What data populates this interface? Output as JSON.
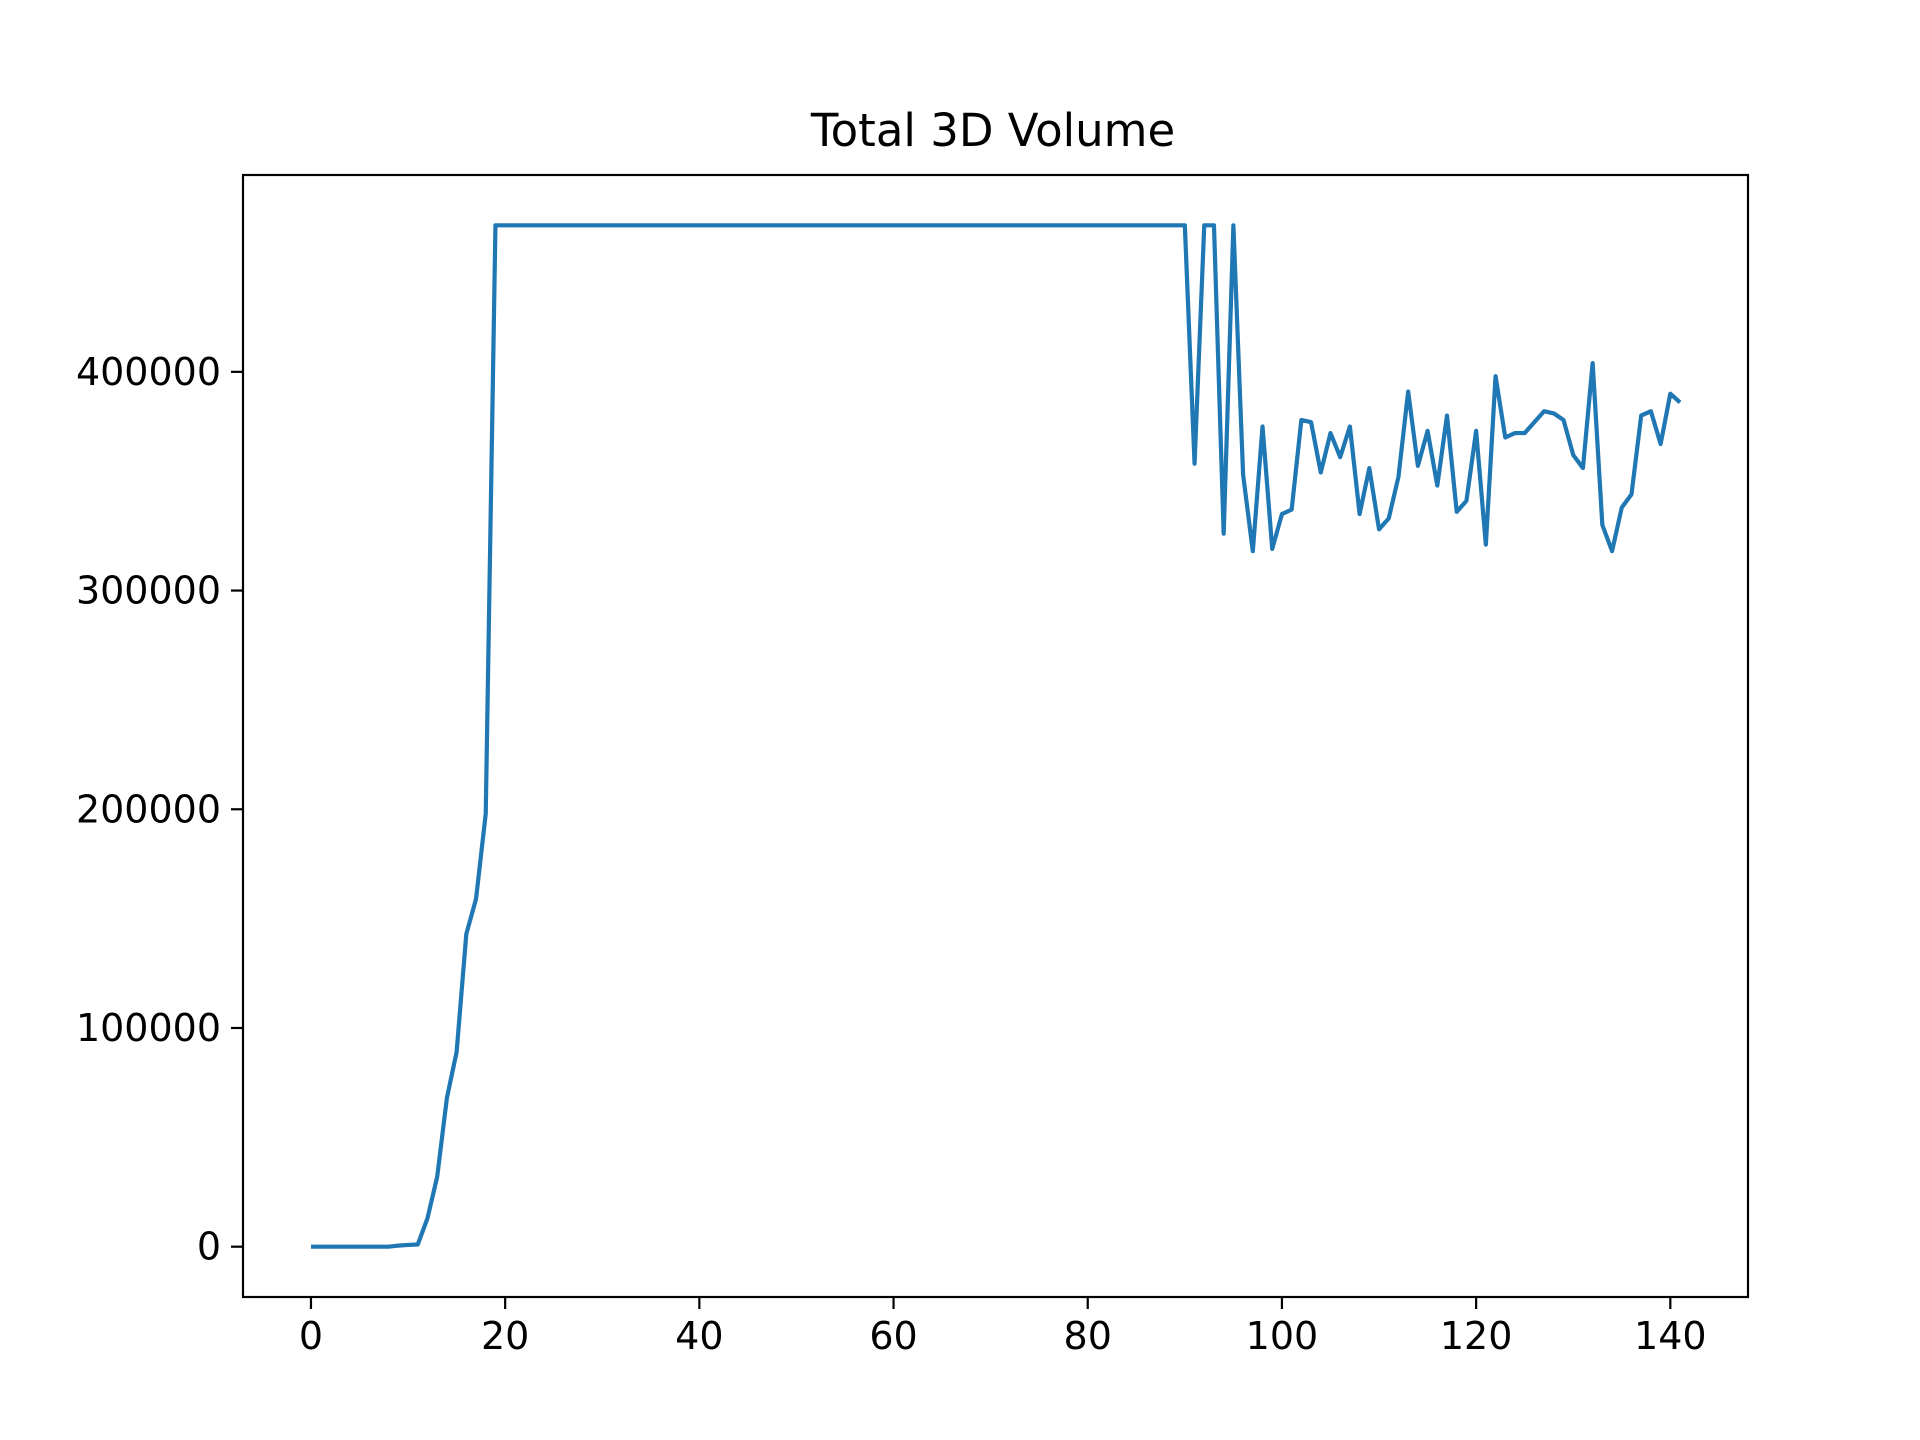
{
  "chart_data": {
    "type": "line",
    "title": "Total 3D Volume",
    "xlabel": "",
    "ylabel": "",
    "xlim": [
      -7,
      148
    ],
    "ylim": [
      -23000,
      490000
    ],
    "x_ticks": [
      0,
      20,
      40,
      60,
      80,
      100,
      120,
      140
    ],
    "y_ticks": [
      0,
      100000,
      200000,
      300000,
      400000
    ],
    "grid": false,
    "legend": "none",
    "series": [
      {
        "color": "#1f77b4",
        "x": [
          0,
          1,
          2,
          3,
          4,
          5,
          6,
          7,
          8,
          9,
          10,
          11,
          12,
          13,
          14,
          15,
          16,
          17,
          18,
          19,
          20,
          21,
          22,
          23,
          24,
          25,
          26,
          27,
          28,
          29,
          30,
          31,
          32,
          33,
          34,
          35,
          36,
          37,
          38,
          39,
          40,
          41,
          42,
          43,
          44,
          45,
          46,
          47,
          48,
          49,
          50,
          51,
          52,
          53,
          54,
          55,
          56,
          57,
          58,
          59,
          60,
          61,
          62,
          63,
          64,
          65,
          66,
          67,
          68,
          69,
          70,
          71,
          72,
          73,
          74,
          75,
          76,
          77,
          78,
          79,
          80,
          81,
          82,
          83,
          84,
          85,
          86,
          87,
          88,
          89,
          90,
          91,
          92,
          93,
          94,
          95,
          96,
          97,
          98,
          99,
          100,
          101,
          102,
          103,
          104,
          105,
          106,
          107,
          108,
          109,
          110,
          111,
          112,
          113,
          114,
          115,
          116,
          117,
          118,
          119,
          120,
          121,
          122,
          123,
          124,
          125,
          126,
          127,
          128,
          129,
          130,
          131,
          132,
          133,
          134,
          135,
          136,
          137,
          138,
          139,
          140,
          141
        ],
        "values": [
          0,
          0,
          0,
          0,
          0,
          0,
          0,
          0,
          0,
          500,
          800,
          1000,
          13000,
          32000,
          68000,
          89000,
          143000,
          159000,
          198000,
          467000,
          467000,
          467000,
          467000,
          467000,
          467000,
          467000,
          467000,
          467000,
          467000,
          467000,
          467000,
          467000,
          467000,
          467000,
          467000,
          467000,
          467000,
          467000,
          467000,
          467000,
          467000,
          467000,
          467000,
          467000,
          467000,
          467000,
          467000,
          467000,
          467000,
          467000,
          467000,
          467000,
          467000,
          467000,
          467000,
          467000,
          467000,
          467000,
          467000,
          467000,
          467000,
          467000,
          467000,
          467000,
          467000,
          467000,
          467000,
          467000,
          467000,
          467000,
          467000,
          467000,
          467000,
          467000,
          467000,
          467000,
          467000,
          467000,
          467000,
          467000,
          467000,
          467000,
          467000,
          467000,
          467000,
          467000,
          467000,
          467000,
          467000,
          467000,
          467000,
          358000,
          467000,
          467000,
          326000,
          467000,
          353000,
          318000,
          375000,
          319000,
          335000,
          337000,
          378000,
          377000,
          354000,
          372000,
          361000,
          375000,
          335000,
          356000,
          328000,
          333000,
          352000,
          391000,
          357000,
          373000,
          348000,
          380000,
          336000,
          341000,
          373000,
          321000,
          398000,
          370000,
          372000,
          372000,
          377000,
          382000,
          381000,
          378000,
          362000,
          356000,
          404000,
          330000,
          318000,
          338000,
          344000,
          380000,
          382000,
          367000,
          390000,
          386000
        ]
      }
    ]
  }
}
